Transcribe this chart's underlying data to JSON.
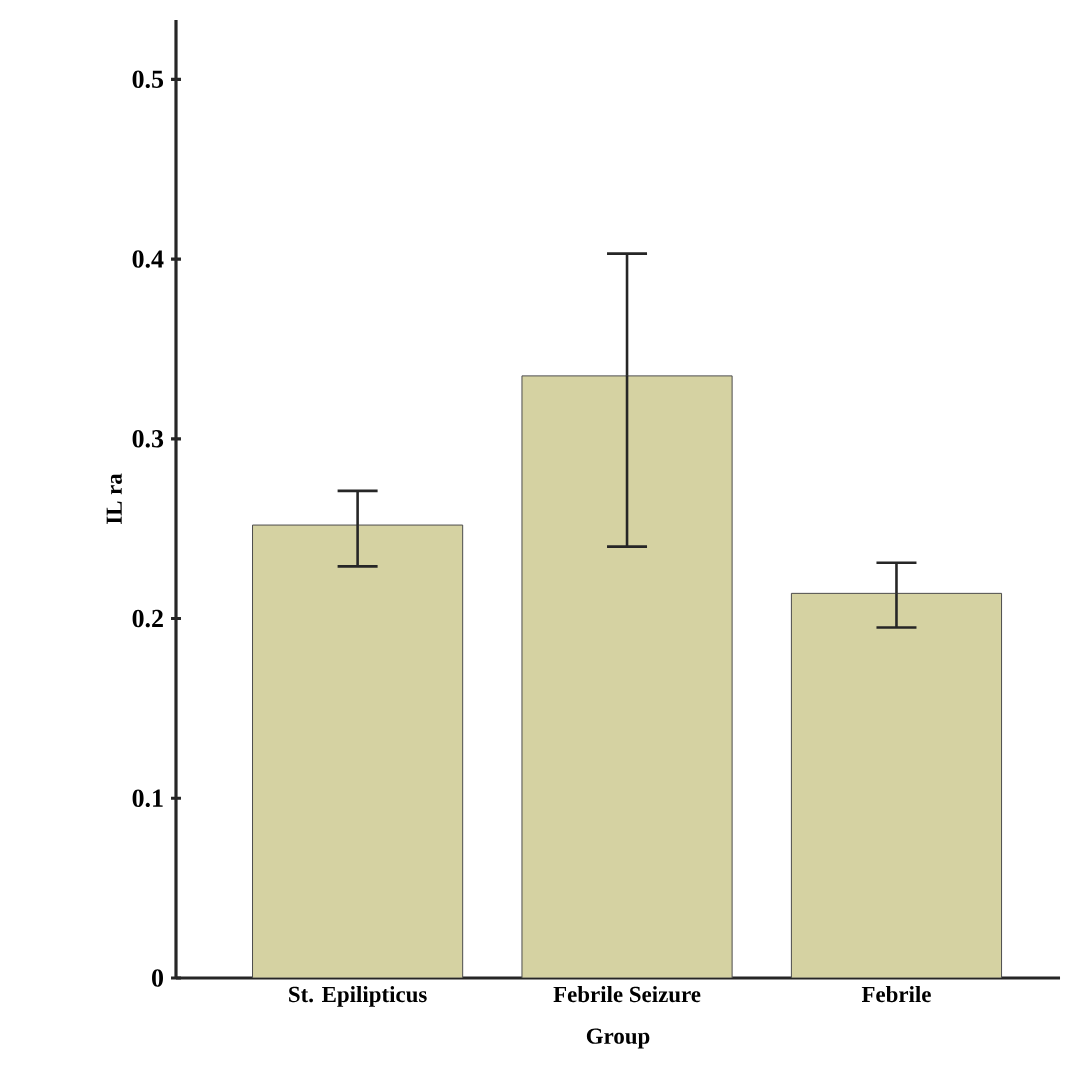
{
  "chart_data": {
    "type": "bar",
    "xlabel": "Group",
    "ylabel": "IL ra",
    "categories": [
      "St. Epilipticus",
      "Febrile Seizure",
      "Febrile"
    ],
    "values": [
      0.252,
      0.335,
      0.214
    ],
    "errors": [
      [
        0.229,
        0.271
      ],
      [
        0.24,
        0.403
      ],
      [
        0.195,
        0.231
      ]
    ],
    "color": "#d5d2a2",
    "ylim": [
      0,
      0.533
    ],
    "yticks": [
      0,
      0.1,
      0.2,
      0.3,
      0.4,
      0.5
    ],
    "grid": false
  }
}
